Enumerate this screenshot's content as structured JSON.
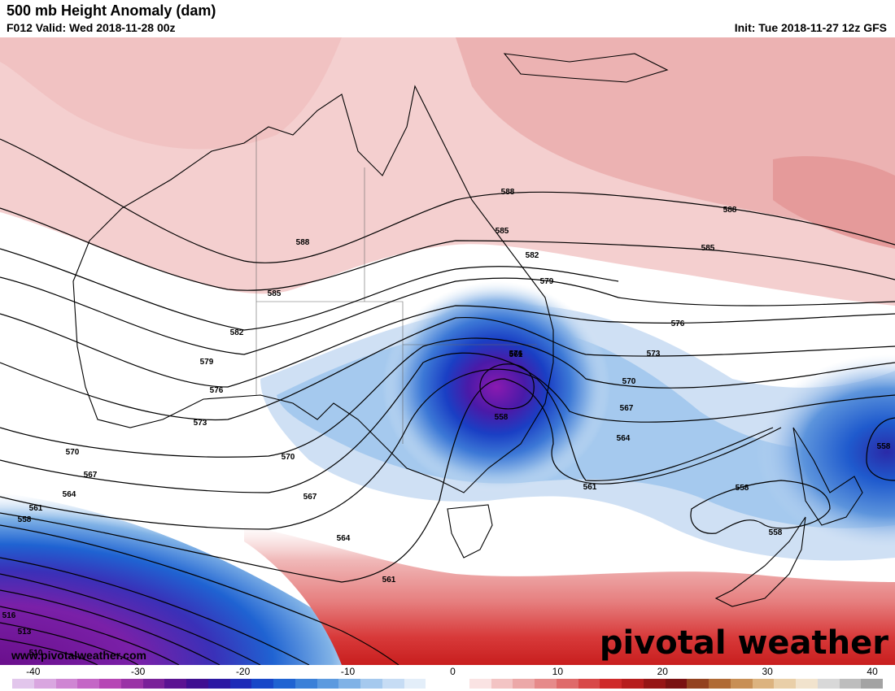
{
  "header": {
    "title": "500 mb Height Anomaly (dam)",
    "valid": "F012 Valid: Wed 2018-11-28 00z",
    "init": "Init: Tue 2018-11-27 12z GFS"
  },
  "watermark": {
    "url": "www.pivotalweather.com",
    "brand": "pivotal weather"
  },
  "colorbar": {
    "tick_labels": [
      "-40",
      "-30",
      "-20",
      "-10",
      "0",
      "10",
      "20",
      "30",
      "40"
    ],
    "tick_values": [
      -40,
      -30,
      -20,
      -10,
      0,
      10,
      20,
      30,
      40
    ],
    "min": -42,
    "max": 41,
    "colors": [
      "#e2c6ec",
      "#d9a6e0",
      "#cf86d3",
      "#c466c6",
      "#b646b5",
      "#9a33a6",
      "#7a2199",
      "#5b1392",
      "#3f0f91",
      "#2c18a3",
      "#1e2bb8",
      "#1747c8",
      "#1f63d2",
      "#3b80d8",
      "#5c9adf",
      "#80b2e6",
      "#a5c9ee",
      "#c6dcf4",
      "#e3eef9",
      "#ffffff",
      "#ffffff",
      "#fae3e3",
      "#f3c4c4",
      "#eca8a8",
      "#e68a8a",
      "#df6a6a",
      "#d84848",
      "#cf2a2a",
      "#b71d1d",
      "#961515",
      "#7a1111",
      "#93421f",
      "#b06a35",
      "#c88f55",
      "#dcb37f",
      "#e9cfa8",
      "#f1e3cd",
      "#d8d8d8",
      "#bdbdbd",
      "#a3a3a3"
    ]
  },
  "contour_labels": [
    "588",
    "588",
    "588",
    "585",
    "585",
    "585",
    "582",
    "582",
    "579",
    "579",
    "576",
    "576",
    "576",
    "573",
    "573",
    "570",
    "570",
    "570",
    "567",
    "567",
    "567",
    "564",
    "564",
    "564",
    "561",
    "561",
    "561",
    "561",
    "558",
    "558",
    "558",
    "558",
    "558",
    "516",
    "513",
    "510"
  ]
}
